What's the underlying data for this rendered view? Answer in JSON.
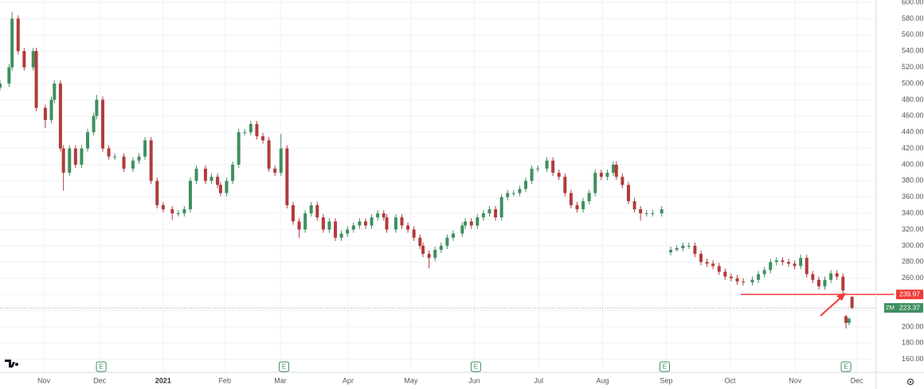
{
  "chart_data": {
    "type": "candlestick",
    "symbol": "ZM",
    "up_color": "#3f8f5f",
    "down_color": "#b13b3b",
    "xlim": [
      0,
      290
    ],
    "ylim": [
      144,
      603
    ],
    "xticks": [
      {
        "value": 14.5,
        "label": "Nov"
      },
      {
        "value": 33,
        "label": "Dec"
      },
      {
        "value": 54,
        "label": "2021"
      },
      {
        "value": 74.4,
        "label": "Feb"
      },
      {
        "value": 92.8,
        "label": "Mar"
      },
      {
        "value": 115.2,
        "label": "Apr"
      },
      {
        "value": 136,
        "label": "May"
      },
      {
        "value": 157,
        "label": "Jun"
      },
      {
        "value": 178.3,
        "label": "Jul"
      },
      {
        "value": 199.4,
        "label": "Aug"
      },
      {
        "value": 220.5,
        "label": "Sep"
      },
      {
        "value": 241.6,
        "label": "Oct"
      },
      {
        "value": 263.2,
        "label": "Nov"
      },
      {
        "value": 283.6,
        "label": "Dec"
      }
    ],
    "yticks": [
      {
        "value": 160,
        "label": "160.00"
      },
      {
        "value": 180,
        "label": "180.00"
      },
      {
        "value": 200,
        "label": "200.00"
      },
      {
        "value": 220,
        "label": "220.00"
      },
      {
        "value": 240,
        "label": "240.00"
      },
      {
        "value": 260,
        "label": "260.00"
      },
      {
        "value": 280,
        "label": "280.00"
      },
      {
        "value": 300,
        "label": "300.00"
      },
      {
        "value": 320,
        "label": "320.00"
      },
      {
        "value": 340,
        "label": "340.00"
      },
      {
        "value": 360,
        "label": "360.00"
      },
      {
        "value": 380,
        "label": "380.00"
      },
      {
        "value": 400,
        "label": "400.00"
      },
      {
        "value": 420,
        "label": "420.00"
      },
      {
        "value": 440,
        "label": "440.00"
      },
      {
        "value": 460,
        "label": "460.00"
      },
      {
        "value": 480,
        "label": "480.00"
      },
      {
        "value": 500,
        "label": "500.00"
      },
      {
        "value": 520,
        "label": "520.00"
      },
      {
        "value": 540,
        "label": "540.00"
      },
      {
        "value": 560,
        "label": "560.00"
      },
      {
        "value": 580,
        "label": "580.00"
      },
      {
        "value": 600,
        "label": "600.00"
      }
    ],
    "grid": true,
    "alert_level": 239.97,
    "last_price": 223.37,
    "earnings": [
      {
        "x": 33.5,
        "label": "E"
      },
      {
        "x": 94,
        "label": "E"
      },
      {
        "x": 157.5,
        "label": "E"
      },
      {
        "x": 220,
        "label": "E"
      },
      {
        "x": 280,
        "label": "E"
      }
    ],
    "candles": [
      [
        0,
        495,
        504,
        491,
        500
      ],
      [
        3,
        500,
        524,
        496,
        520
      ],
      [
        4,
        520,
        588,
        516,
        580
      ],
      [
        6,
        580,
        584,
        536,
        540
      ],
      [
        8,
        540,
        544,
        516,
        520
      ],
      [
        11,
        520,
        544,
        516,
        540
      ],
      [
        12,
        540,
        544,
        466,
        470
      ],
      [
        15,
        470,
        474,
        445,
        455
      ],
      [
        17,
        455,
        484,
        451,
        480
      ],
      [
        18,
        480,
        504,
        476,
        500
      ],
      [
        20,
        500,
        504,
        416,
        420
      ],
      [
        21,
        420,
        424,
        368,
        390
      ],
      [
        23,
        390,
        424,
        386,
        420
      ],
      [
        25,
        420,
        424,
        396,
        400
      ],
      [
        27,
        400,
        424,
        396,
        420
      ],
      [
        29,
        420,
        444,
        416,
        440
      ],
      [
        31,
        440,
        464,
        436,
        460
      ],
      [
        32,
        460,
        486,
        456,
        480
      ],
      [
        34,
        480,
        484,
        416,
        420
      ],
      [
        36,
        420,
        424,
        406,
        410
      ],
      [
        38,
        410,
        414,
        406,
        410
      ],
      [
        41,
        410,
        414,
        391,
        395
      ],
      [
        44,
        395,
        409,
        391,
        405
      ],
      [
        46,
        405,
        414,
        401,
        410
      ],
      [
        48,
        410,
        434,
        406,
        430
      ],
      [
        50,
        430,
        434,
        376,
        380
      ],
      [
        52,
        380,
        384,
        346,
        350
      ],
      [
        54,
        350,
        354,
        341,
        345
      ],
      [
        57,
        345,
        349,
        332,
        340
      ],
      [
        59,
        340,
        344,
        336,
        340
      ],
      [
        61,
        340,
        349,
        336,
        345
      ],
      [
        63,
        345,
        384,
        341,
        380
      ],
      [
        65,
        380,
        399,
        376,
        395
      ],
      [
        68,
        395,
        399,
        376,
        380
      ],
      [
        70,
        380,
        389,
        376,
        385
      ],
      [
        72,
        385,
        389,
        371,
        375
      ],
      [
        73,
        375,
        379,
        361,
        365
      ],
      [
        75,
        365,
        384,
        361,
        380
      ],
      [
        77,
        380,
        404,
        376,
        400
      ],
      [
        79,
        400,
        444,
        396,
        440
      ],
      [
        81,
        440,
        444,
        436,
        440
      ],
      [
        83,
        440,
        454,
        436,
        450
      ],
      [
        85,
        450,
        454,
        431,
        435
      ],
      [
        87,
        435,
        439,
        426,
        430
      ],
      [
        89,
        430,
        434,
        391,
        395
      ],
      [
        91,
        395,
        399,
        386,
        390
      ],
      [
        93,
        390,
        438,
        386,
        420
      ],
      [
        95,
        420,
        424,
        346,
        350
      ],
      [
        97,
        350,
        354,
        326,
        330
      ],
      [
        99,
        330,
        334,
        310,
        320
      ],
      [
        101,
        320,
        344,
        316,
        340
      ],
      [
        103,
        340,
        354,
        336,
        350
      ],
      [
        105,
        350,
        354,
        331,
        335
      ],
      [
        107,
        335,
        339,
        316,
        320
      ],
      [
        109,
        320,
        334,
        316,
        330
      ],
      [
        111,
        330,
        334,
        306,
        310
      ],
      [
        113,
        310,
        319,
        306,
        315
      ],
      [
        115,
        315,
        324,
        311,
        320
      ],
      [
        117,
        320,
        329,
        316,
        325
      ],
      [
        119,
        325,
        334,
        321,
        330
      ],
      [
        121,
        330,
        334,
        321,
        325
      ],
      [
        123,
        325,
        339,
        321,
        335
      ],
      [
        125,
        335,
        344,
        331,
        340
      ],
      [
        127,
        340,
        344,
        331,
        335
      ],
      [
        128,
        335,
        339,
        316,
        320
      ],
      [
        131,
        320,
        339,
        316,
        335
      ],
      [
        133,
        335,
        339,
        321,
        325
      ],
      [
        135,
        325,
        329,
        316,
        320
      ],
      [
        137,
        320,
        324,
        306,
        310
      ],
      [
        139,
        310,
        314,
        296,
        300
      ],
      [
        140,
        300,
        304,
        286,
        290
      ],
      [
        142,
        290,
        294,
        272,
        285
      ],
      [
        144,
        285,
        299,
        281,
        295
      ],
      [
        146,
        295,
        304,
        291,
        300
      ],
      [
        148,
        300,
        314,
        296,
        310
      ],
      [
        150,
        310,
        319,
        306,
        315
      ],
      [
        153,
        315,
        329,
        311,
        325
      ],
      [
        154,
        325,
        334,
        321,
        330
      ],
      [
        156,
        330,
        334,
        321,
        325
      ],
      [
        158,
        325,
        339,
        321,
        335
      ],
      [
        160,
        335,
        344,
        331,
        340
      ],
      [
        162,
        340,
        349,
        336,
        345
      ],
      [
        164,
        345,
        349,
        331,
        335
      ],
      [
        166,
        335,
        364,
        331,
        360
      ],
      [
        168,
        360,
        369,
        356,
        365
      ],
      [
        170,
        365,
        369,
        361,
        365
      ],
      [
        172,
        365,
        374,
        361,
        370
      ],
      [
        174,
        370,
        384,
        366,
        380
      ],
      [
        176,
        380,
        399,
        376,
        395
      ],
      [
        178,
        395,
        399,
        391,
        395
      ],
      [
        181,
        395,
        409,
        391,
        405
      ],
      [
        183,
        405,
        409,
        386,
        390
      ],
      [
        185,
        390,
        394,
        381,
        385
      ],
      [
        187,
        385,
        389,
        361,
        365
      ],
      [
        189,
        365,
        369,
        346,
        350
      ],
      [
        191,
        350,
        354,
        341,
        345
      ],
      [
        193,
        345,
        359,
        341,
        355
      ],
      [
        195,
        355,
        369,
        351,
        365
      ],
      [
        197,
        365,
        394,
        361,
        390
      ],
      [
        199,
        390,
        394,
        381,
        385
      ],
      [
        201,
        385,
        394,
        381,
        390
      ],
      [
        203,
        390,
        404,
        386,
        400
      ],
      [
        204,
        400,
        404,
        381,
        385
      ],
      [
        206,
        385,
        389,
        371,
        375
      ],
      [
        208,
        375,
        379,
        351,
        355
      ],
      [
        210,
        355,
        359,
        341,
        345
      ],
      [
        212,
        345,
        349,
        331,
        340
      ],
      [
        214,
        340,
        344,
        336,
        340
      ],
      [
        216,
        340,
        344,
        336,
        340
      ],
      [
        219,
        340,
        349,
        336,
        345
      ],
      [
        222,
        292,
        299,
        288,
        295
      ],
      [
        224,
        295,
        301,
        293,
        297
      ],
      [
        226,
        297,
        304,
        293,
        300
      ],
      [
        228,
        300,
        304,
        296,
        300
      ],
      [
        230,
        300,
        304,
        286,
        290
      ],
      [
        232,
        290,
        294,
        276,
        280
      ],
      [
        234,
        280,
        284,
        274,
        278
      ],
      [
        236,
        278,
        282,
        271,
        275
      ],
      [
        238,
        275,
        279,
        264,
        268
      ],
      [
        240,
        268,
        272,
        258,
        262
      ],
      [
        242,
        262,
        266,
        256,
        260
      ],
      [
        244,
        260,
        264,
        252,
        256
      ],
      [
        246,
        256,
        260,
        251,
        255
      ],
      [
        249,
        255,
        262,
        251,
        258
      ],
      [
        251,
        258,
        269,
        254,
        265
      ],
      [
        253,
        265,
        274,
        261,
        270
      ],
      [
        255,
        270,
        284,
        266,
        280
      ],
      [
        257,
        280,
        286,
        276,
        282
      ],
      [
        259,
        282,
        286,
        276,
        280
      ],
      [
        261,
        280,
        284,
        274,
        278
      ],
      [
        263,
        278,
        282,
        271,
        275
      ],
      [
        265,
        275,
        289,
        271,
        285
      ],
      [
        267,
        285,
        289,
        261,
        265
      ],
      [
        269,
        265,
        269,
        254,
        258
      ],
      [
        271,
        258,
        262,
        246,
        250
      ],
      [
        273,
        250,
        262,
        246,
        258
      ],
      [
        275,
        258,
        270,
        254,
        266
      ],
      [
        277,
        266,
        270,
        258,
        262
      ],
      [
        279,
        262,
        266,
        241,
        245
      ],
      [
        280,
        213,
        215,
        198,
        205
      ],
      [
        281,
        205,
        212,
        202,
        210
      ],
      [
        282,
        237,
        238,
        222,
        223.37
      ]
    ]
  }
}
